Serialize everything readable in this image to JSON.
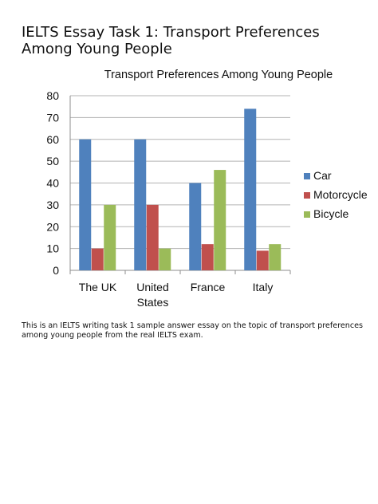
{
  "document": {
    "title_lines": [
      "IELTS Essay Task 1: Transport Preferences",
      "Among Young People"
    ],
    "caption": "This is an IELTS writing task 1 sample answer essay on the topic of transport preferences among young people from the real IELTS exam."
  },
  "chart_data": {
    "type": "bar",
    "title": "Transport Preferences Among Young People",
    "xlabel": "",
    "ylabel": "",
    "categories": [
      [
        "The UK"
      ],
      [
        "United",
        "States"
      ],
      [
        "France"
      ],
      [
        "Italy"
      ]
    ],
    "series": [
      {
        "name": "Car",
        "color": "#4f81bd",
        "values": [
          60,
          60,
          40,
          74
        ]
      },
      {
        "name": "Motorcycle",
        "color": "#c0504d",
        "values": [
          10,
          30,
          12,
          9
        ]
      },
      {
        "name": "Bicycle",
        "color": "#9bbb59",
        "values": [
          30,
          10,
          46,
          12
        ]
      }
    ],
    "ylim": [
      0,
      80
    ],
    "yticks": [
      "0",
      "10",
      "20",
      "30",
      "40",
      "50",
      "60",
      "70",
      "80"
    ],
    "grid": true,
    "legend_position": "right"
  }
}
